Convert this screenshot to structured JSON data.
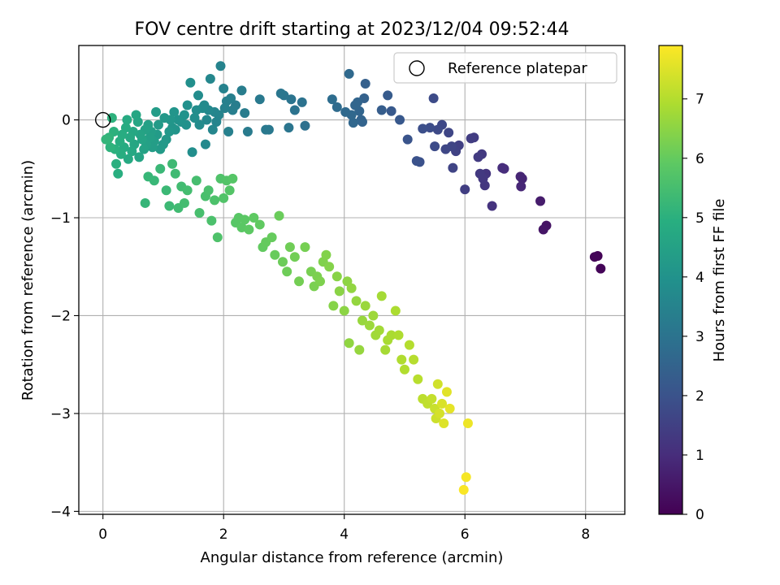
{
  "chart_data": {
    "type": "scatter",
    "title": "FOV centre drift starting at 2023/12/04 09:52:44",
    "xlabel": "Angular distance from reference (arcmin)",
    "ylabel": "Rotation from reference (arcmin)",
    "xlim": [
      -0.4,
      8.65
    ],
    "ylim": [
      -4.03,
      0.76
    ],
    "xticks": [
      0,
      2,
      4,
      6,
      8
    ],
    "yticks": [
      0,
      -1,
      -2,
      -3,
      -4
    ],
    "grid": true,
    "legend": {
      "placement": "top-right",
      "entries": [
        "Reference platepar"
      ]
    },
    "reference_point": {
      "x": 0,
      "y": 0,
      "label": "Reference platepar"
    },
    "colorbar": {
      "label": "Hours from first FF file",
      "range": [
        0,
        7.9
      ],
      "ticks": [
        0,
        1,
        2,
        3,
        4,
        5,
        6,
        7
      ],
      "colormap": "viridis"
    },
    "series": [
      {
        "points": [
          [
            8.2,
            -1.39,
            0.05
          ],
          [
            8.15,
            -1.4,
            0.08
          ],
          [
            8.25,
            -1.52,
            0.1
          ],
          [
            7.35,
            -1.08,
            0.4
          ],
          [
            7.3,
            -1.12,
            0.45
          ],
          [
            7.25,
            -0.83,
            0.6
          ],
          [
            6.95,
            -0.6,
            0.8
          ],
          [
            6.92,
            -0.58,
            0.82
          ],
          [
            6.93,
            -0.68,
            0.85
          ],
          [
            6.65,
            -0.5,
            1.0
          ],
          [
            6.62,
            -0.49,
            1.02
          ],
          [
            6.45,
            -0.88,
            1.15
          ],
          [
            6.35,
            -0.55,
            1.2
          ],
          [
            6.33,
            -0.67,
            1.25
          ],
          [
            6.3,
            -0.6,
            1.27
          ],
          [
            6.28,
            -0.35,
            1.3
          ],
          [
            6.25,
            -0.55,
            1.32
          ],
          [
            6.22,
            -0.38,
            1.35
          ],
          [
            6.15,
            -0.18,
            1.4
          ],
          [
            6.1,
            -0.19,
            1.42
          ],
          [
            6.0,
            -0.71,
            1.45
          ],
          [
            5.9,
            -0.26,
            1.5
          ],
          [
            5.85,
            -0.32,
            1.55
          ],
          [
            5.8,
            -0.49,
            1.6
          ],
          [
            5.78,
            -0.27,
            1.62
          ],
          [
            5.73,
            -0.13,
            1.65
          ],
          [
            5.68,
            -0.3,
            1.68
          ],
          [
            5.62,
            -0.05,
            1.7
          ],
          [
            5.55,
            -0.1,
            1.75
          ],
          [
            5.5,
            -0.27,
            1.78
          ],
          [
            5.48,
            0.22,
            1.8
          ],
          [
            5.42,
            -0.08,
            1.83
          ],
          [
            5.3,
            -0.09,
            1.9
          ],
          [
            5.25,
            -0.43,
            1.95
          ],
          [
            5.2,
            -0.42,
            1.97
          ],
          [
            5.05,
            -0.2,
            2.05
          ],
          [
            4.92,
            0.0,
            2.15
          ],
          [
            4.78,
            0.09,
            2.2
          ],
          [
            4.72,
            0.25,
            2.25
          ],
          [
            4.62,
            0.1,
            2.3
          ],
          [
            4.35,
            0.37,
            2.4
          ],
          [
            4.33,
            0.22,
            2.45
          ],
          [
            4.3,
            -0.02,
            2.5
          ],
          [
            4.28,
            0.0,
            2.52
          ],
          [
            4.25,
            0.09,
            2.55
          ],
          [
            4.22,
            0.18,
            2.57
          ],
          [
            4.18,
            0.15,
            2.6
          ],
          [
            4.15,
            -0.03,
            2.62
          ],
          [
            4.12,
            0.05,
            2.65
          ],
          [
            4.08,
            0.47,
            2.67
          ],
          [
            4.02,
            0.08,
            2.7
          ],
          [
            3.88,
            0.13,
            2.75
          ],
          [
            3.8,
            0.21,
            2.8
          ],
          [
            3.35,
            -0.06,
            2.9
          ],
          [
            3.3,
            0.18,
            2.95
          ],
          [
            3.18,
            0.1,
            3.0
          ],
          [
            3.12,
            0.21,
            3.02
          ],
          [
            3.08,
            -0.08,
            3.05
          ],
          [
            3.0,
            0.25,
            3.07
          ],
          [
            2.95,
            0.27,
            3.1
          ],
          [
            2.75,
            -0.1,
            3.15
          ],
          [
            2.7,
            -0.1,
            3.17
          ],
          [
            2.6,
            0.21,
            3.2
          ],
          [
            2.4,
            -0.12,
            3.25
          ],
          [
            2.35,
            0.07,
            3.27
          ],
          [
            2.3,
            0.3,
            3.3
          ],
          [
            2.2,
            0.15,
            3.32
          ],
          [
            2.15,
            0.1,
            3.35
          ],
          [
            2.12,
            0.22,
            3.37
          ],
          [
            2.08,
            -0.12,
            3.4
          ],
          [
            2.05,
            0.19,
            3.42
          ],
          [
            2.02,
            0.12,
            3.45
          ],
          [
            2.0,
            0.32,
            3.47
          ],
          [
            1.95,
            0.55,
            3.5
          ],
          [
            1.92,
            0.05,
            3.52
          ],
          [
            1.88,
            -0.02,
            3.55
          ],
          [
            1.85,
            0.08,
            3.57
          ],
          [
            1.82,
            -0.1,
            3.6
          ],
          [
            1.78,
            0.42,
            3.62
          ],
          [
            1.75,
            0.1,
            3.65
          ],
          [
            1.72,
            0.0,
            3.67
          ],
          [
            1.7,
            -0.25,
            3.7
          ],
          [
            1.68,
            0.15,
            3.72
          ],
          [
            1.65,
            0.12,
            3.75
          ],
          [
            1.6,
            -0.05,
            3.77
          ],
          [
            1.58,
            0.25,
            3.8
          ],
          [
            1.55,
            0.1,
            3.82
          ],
          [
            1.52,
            0.02,
            3.85
          ],
          [
            1.48,
            -0.33,
            3.87
          ],
          [
            1.45,
            0.38,
            3.9
          ],
          [
            1.4,
            0.15,
            3.92
          ],
          [
            1.38,
            -0.05,
            3.95
          ],
          [
            1.35,
            0.05,
            3.97
          ],
          [
            1.3,
            -0.02,
            4.0
          ],
          [
            1.25,
            0.0,
            4.02
          ],
          [
            1.2,
            -0.1,
            4.05
          ],
          [
            1.18,
            0.08,
            4.07
          ],
          [
            1.15,
            -0.08,
            4.1
          ],
          [
            1.12,
            0.0,
            4.12
          ],
          [
            1.1,
            -0.12,
            4.15
          ],
          [
            1.05,
            -0.2,
            4.17
          ],
          [
            1.02,
            0.02,
            4.2
          ],
          [
            1.0,
            -0.25,
            4.22
          ],
          [
            0.95,
            -0.3,
            4.25
          ],
          [
            0.92,
            -0.05,
            4.27
          ],
          [
            0.9,
            -0.15,
            4.3
          ],
          [
            0.88,
            0.08,
            4.32
          ],
          [
            0.85,
            -0.22,
            4.35
          ],
          [
            0.82,
            -0.28,
            4.37
          ],
          [
            0.8,
            -0.12,
            4.4
          ],
          [
            0.78,
            -0.18,
            4.42
          ],
          [
            0.75,
            -0.05,
            4.45
          ],
          [
            0.72,
            -0.25,
            4.47
          ],
          [
            0.7,
            -0.1,
            4.5
          ],
          [
            0.68,
            -0.3,
            4.52
          ],
          [
            0.65,
            -0.2,
            4.55
          ],
          [
            0.62,
            -0.15,
            4.57
          ],
          [
            0.6,
            -0.38,
            4.6
          ],
          [
            0.58,
            -0.02,
            4.62
          ],
          [
            0.55,
            0.05,
            4.65
          ],
          [
            0.52,
            -0.25,
            4.67
          ],
          [
            0.5,
            -0.12,
            4.7
          ],
          [
            0.48,
            -0.32,
            4.72
          ],
          [
            0.45,
            -0.18,
            4.75
          ],
          [
            0.42,
            -0.4,
            4.77
          ],
          [
            0.4,
            0.0,
            4.8
          ],
          [
            0.38,
            -0.08,
            4.82
          ],
          [
            0.35,
            -0.28,
            4.85
          ],
          [
            0.32,
            -0.15,
            4.87
          ],
          [
            0.3,
            -0.35,
            4.9
          ],
          [
            0.28,
            -0.22,
            4.92
          ],
          [
            0.25,
            -0.55,
            4.95
          ],
          [
            0.22,
            -0.45,
            4.97
          ],
          [
            0.2,
            -0.3,
            5.0
          ],
          [
            0.18,
            -0.12,
            5.02
          ],
          [
            0.15,
            0.02,
            5.05
          ],
          [
            0.12,
            -0.28,
            5.07
          ],
          [
            0.1,
            -0.18,
            5.1
          ],
          [
            0.08,
            -0.2,
            5.12
          ],
          [
            0.05,
            -0.2,
            5.15
          ],
          [
            0.7,
            -0.85,
            5.2
          ],
          [
            0.75,
            -0.58,
            5.22
          ],
          [
            0.85,
            -0.62,
            5.25
          ],
          [
            0.95,
            -0.5,
            5.27
          ],
          [
            1.05,
            -0.72,
            5.3
          ],
          [
            1.1,
            -0.88,
            5.32
          ],
          [
            1.15,
            -0.45,
            5.35
          ],
          [
            1.2,
            -0.55,
            5.37
          ],
          [
            1.25,
            -0.9,
            5.4
          ],
          [
            1.3,
            -0.68,
            5.42
          ],
          [
            1.35,
            -0.85,
            5.45
          ],
          [
            1.4,
            -0.72,
            5.47
          ],
          [
            1.55,
            -0.62,
            5.5
          ],
          [
            1.6,
            -0.95,
            5.52
          ],
          [
            1.7,
            -0.78,
            5.55
          ],
          [
            1.75,
            -0.72,
            5.57
          ],
          [
            1.8,
            -1.03,
            5.6
          ],
          [
            1.85,
            -0.82,
            5.62
          ],
          [
            1.9,
            -1.2,
            5.65
          ],
          [
            1.95,
            -0.6,
            5.67
          ],
          [
            2.0,
            -0.8,
            5.7
          ],
          [
            2.05,
            -0.62,
            5.72
          ],
          [
            2.1,
            -0.72,
            5.75
          ],
          [
            2.15,
            -0.6,
            5.77
          ],
          [
            2.2,
            -1.05,
            5.8
          ],
          [
            2.25,
            -1.0,
            5.82
          ],
          [
            2.3,
            -1.1,
            5.85
          ],
          [
            2.35,
            -1.02,
            5.87
          ],
          [
            2.42,
            -1.12,
            5.9
          ],
          [
            2.5,
            -1.0,
            5.92
          ],
          [
            2.6,
            -1.07,
            5.95
          ],
          [
            2.65,
            -1.3,
            5.97
          ],
          [
            2.7,
            -1.25,
            6.0
          ],
          [
            2.8,
            -1.2,
            6.02
          ],
          [
            2.85,
            -1.38,
            6.05
          ],
          [
            2.92,
            -0.98,
            6.07
          ],
          [
            2.98,
            -1.45,
            6.1
          ],
          [
            3.05,
            -1.55,
            6.12
          ],
          [
            3.1,
            -1.3,
            6.15
          ],
          [
            3.18,
            -1.4,
            6.17
          ],
          [
            3.25,
            -1.65,
            6.2
          ],
          [
            3.35,
            -1.3,
            6.22
          ],
          [
            3.45,
            -1.55,
            6.25
          ],
          [
            3.5,
            -1.7,
            6.27
          ],
          [
            3.55,
            -1.6,
            6.3
          ],
          [
            3.6,
            -1.65,
            6.32
          ],
          [
            3.65,
            -1.45,
            6.35
          ],
          [
            3.7,
            -1.38,
            6.37
          ],
          [
            3.75,
            -1.5,
            6.4
          ],
          [
            3.82,
            -1.9,
            6.42
          ],
          [
            3.88,
            -1.6,
            6.45
          ],
          [
            3.92,
            -1.75,
            6.47
          ],
          [
            4.0,
            -1.95,
            6.5
          ],
          [
            4.05,
            -1.65,
            6.52
          ],
          [
            4.08,
            -2.28,
            6.55
          ],
          [
            4.12,
            -1.72,
            6.57
          ],
          [
            4.2,
            -1.85,
            6.6
          ],
          [
            4.25,
            -2.35,
            6.62
          ],
          [
            4.3,
            -2.05,
            6.65
          ],
          [
            4.35,
            -1.9,
            6.67
          ],
          [
            4.42,
            -2.1,
            6.7
          ],
          [
            4.48,
            -2.0,
            6.72
          ],
          [
            4.52,
            -2.2,
            6.75
          ],
          [
            4.58,
            -2.15,
            6.77
          ],
          [
            4.62,
            -1.8,
            6.8
          ],
          [
            4.68,
            -2.35,
            6.82
          ],
          [
            4.72,
            -2.25,
            6.85
          ],
          [
            4.78,
            -2.2,
            6.87
          ],
          [
            4.85,
            -1.95,
            6.9
          ],
          [
            4.9,
            -2.2,
            6.92
          ],
          [
            4.95,
            -2.45,
            6.95
          ],
          [
            5.0,
            -2.55,
            6.97
          ],
          [
            5.08,
            -2.3,
            7.0
          ],
          [
            5.15,
            -2.45,
            7.02
          ],
          [
            5.22,
            -2.65,
            7.05
          ],
          [
            5.3,
            -2.85,
            7.1
          ],
          [
            5.38,
            -2.9,
            7.15
          ],
          [
            5.45,
            -2.85,
            7.2
          ],
          [
            5.5,
            -2.95,
            7.25
          ],
          [
            5.52,
            -3.05,
            7.3
          ],
          [
            5.55,
            -2.7,
            7.35
          ],
          [
            5.58,
            -3.0,
            7.4
          ],
          [
            5.62,
            -2.9,
            7.45
          ],
          [
            5.65,
            -3.1,
            7.5
          ],
          [
            5.7,
            -2.78,
            7.55
          ],
          [
            5.75,
            -2.95,
            7.6
          ],
          [
            6.05,
            -3.1,
            7.7
          ],
          [
            6.02,
            -3.65,
            7.8
          ],
          [
            5.98,
            -3.78,
            7.85
          ]
        ]
      }
    ]
  }
}
